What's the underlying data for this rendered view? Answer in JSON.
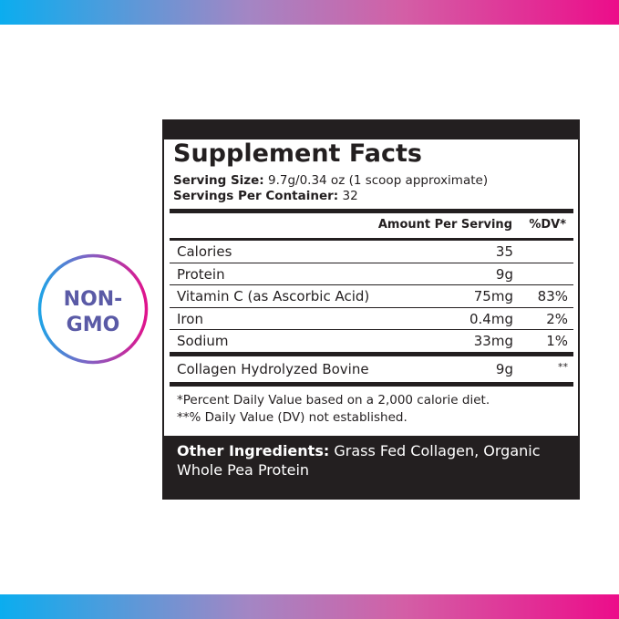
{
  "badge": {
    "line1": "NON-",
    "line2": "GMO",
    "colors": {
      "ring_start": "#1fa3e6",
      "ring_end": "#e0138c",
      "text": "#5a5aa6"
    }
  },
  "label": {
    "title": "Supplement Facts",
    "serving_size_label": "Serving Size:",
    "serving_size_value": "9.7g/0.34 oz (1 scoop approximate)",
    "servings_label": "Servings Per Container:",
    "servings_value": "32",
    "header": {
      "amount": "Amount Per Serving",
      "dv": "%DV*"
    },
    "rows": [
      {
        "name": "Calories",
        "amount": "35",
        "dv": ""
      },
      {
        "name": "Protein",
        "amount": "9g",
        "dv": ""
      },
      {
        "name": "Vitamin C (as Ascorbic Acid)",
        "amount": "75mg",
        "dv": "83%"
      },
      {
        "name": "Iron",
        "amount": "0.4mg",
        "dv": "2%"
      },
      {
        "name": "Sodium",
        "amount": "33mg",
        "dv": "1%"
      }
    ],
    "extra": {
      "name": "Collagen Hydrolyzed Bovine",
      "amount": "9g",
      "dv": "**"
    },
    "footnote1": "*Percent Daily Value based on a 2,000 calorie diet.",
    "footnote2": "**% Daily Value (DV) not established.",
    "other_label": "Other Ingredients:",
    "other_value": "Grass Fed Collagen, Organic Whole Pea Protein"
  }
}
